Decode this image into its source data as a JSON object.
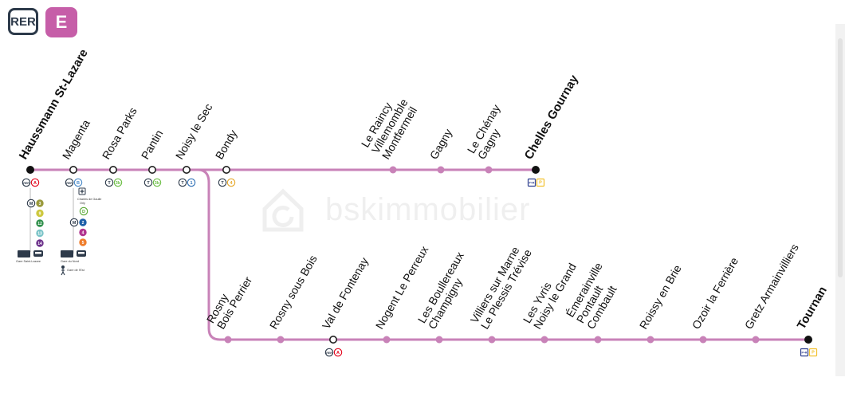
{
  "header": {
    "network": "RER",
    "line": "E"
  },
  "colors": {
    "line": "#c882b8",
    "bullet": "#c882b8",
    "terminus": "#111111",
    "rer_badge": "#2d3a4a",
    "line_badge": "#c65ea8"
  },
  "watermark": {
    "text": "bskimmobilier"
  },
  "branch_main": [
    {
      "id": "haussmann",
      "label": [
        "Haussmann St-Lazare"
      ],
      "type": "terminus",
      "bold": true,
      "connections": [
        {
          "kind": "mode",
          "text": "RER"
        },
        {
          "kind": "line",
          "text": "A",
          "color": "#e3051c",
          "style": "outline"
        }
      ]
    },
    {
      "id": "magenta",
      "label": [
        "Magenta"
      ],
      "type": "interchange",
      "connections": [
        {
          "kind": "mode",
          "text": "RER"
        },
        {
          "kind": "line",
          "text": "B",
          "color": "#4b8bc9",
          "style": "outline"
        }
      ]
    },
    {
      "id": "rosa-parks",
      "label": [
        "Rosa Parks"
      ],
      "type": "interchange",
      "connections": [
        {
          "kind": "mode",
          "text": "T"
        },
        {
          "kind": "line",
          "text": "3b",
          "color": "#6cbe45",
          "style": "outline"
        }
      ]
    },
    {
      "id": "pantin",
      "label": [
        "Pantin"
      ],
      "type": "interchange",
      "connections": [
        {
          "kind": "mode",
          "text": "T"
        },
        {
          "kind": "line",
          "text": "3b",
          "color": "#6cbe45",
          "style": "outline"
        }
      ]
    },
    {
      "id": "noisy-le-sec",
      "label": [
        "Noisy le Sec"
      ],
      "type": "interchange",
      "connections": [
        {
          "kind": "mode",
          "text": "T"
        },
        {
          "kind": "line",
          "text": "1",
          "color": "#2e6fb6",
          "style": "outline"
        }
      ]
    },
    {
      "id": "bondy",
      "label": [
        "Bondy"
      ],
      "type": "interchange",
      "connections": [
        {
          "kind": "mode",
          "text": "T"
        },
        {
          "kind": "line",
          "text": "4",
          "color": "#e6a82b",
          "style": "outline"
        }
      ]
    },
    {
      "id": "le-raincy",
      "label": [
        "Le Raincy",
        "Villemomble",
        "Montfermeil"
      ],
      "type": "stop"
    },
    {
      "id": "gagny",
      "label": [
        "Gagny"
      ],
      "type": "stop"
    },
    {
      "id": "le-chenay-gagny",
      "label": [
        "Le Chénay",
        "Gagny"
      ],
      "type": "stop"
    },
    {
      "id": "chelles",
      "label": [
        "Chelles Gournay"
      ],
      "type": "terminus",
      "bold": true,
      "connections": [
        {
          "kind": "square",
          "text": "P+R",
          "color": "#2e3f8f"
        },
        {
          "kind": "square",
          "text": "P",
          "color": "#f2c12e"
        }
      ]
    }
  ],
  "haussmann_extra": {
    "metro_lines": [
      {
        "text": "3",
        "color": "#9a9a3c"
      },
      {
        "text": "9",
        "color": "#cdc83f"
      },
      {
        "text": "12",
        "color": "#2e8f4a"
      },
      {
        "text": "13",
        "color": "#79c3c7"
      },
      {
        "text": "14",
        "color": "#6b2f8a"
      }
    ],
    "caption": "Gare Saint-Lazare"
  },
  "magenta_extra": {
    "airport_caption": [
      "Charles de Gaulle",
      "Orly"
    ],
    "rer_d": {
      "text": "D",
      "color": "#58a833"
    },
    "metro_lines": [
      {
        "text": "2",
        "color": "#1d5fa8"
      },
      {
        "text": "4",
        "color": "#b1348f"
      },
      {
        "text": "5",
        "color": "#ef7d2b"
      }
    ],
    "caption_train": "Gare du Nord",
    "caption_walk": "Gare de l'Est"
  },
  "branch_tournan": [
    {
      "id": "rosny-bois-perrier",
      "label": [
        "Rosny",
        "Bois Perrier"
      ],
      "type": "stop"
    },
    {
      "id": "rosny-sous-bois",
      "label": [
        "Rosny sous Bois"
      ],
      "type": "stop"
    },
    {
      "id": "val-de-fontenay",
      "label": [
        "Val de Fontenay"
      ],
      "type": "interchange",
      "connections": [
        {
          "kind": "mode",
          "text": "RER"
        },
        {
          "kind": "line",
          "text": "A",
          "color": "#e3051c",
          "style": "outline"
        }
      ]
    },
    {
      "id": "nogent",
      "label": [
        "Nogent Le Perreux"
      ],
      "type": "stop"
    },
    {
      "id": "boullereaux",
      "label": [
        "Les Boullereaux",
        "Champigny"
      ],
      "type": "stop"
    },
    {
      "id": "villiers",
      "label": [
        "Villiers sur Marne",
        "Le Plessis Trévise"
      ],
      "type": "stop"
    },
    {
      "id": "yvris",
      "label": [
        "Les Yvris",
        "Noisy le Grand"
      ],
      "type": "stop"
    },
    {
      "id": "emerainville",
      "label": [
        "Émerainville",
        "Pontault",
        "Combault"
      ],
      "type": "stop"
    },
    {
      "id": "roissy-en-brie",
      "label": [
        "Roissy en Brie"
      ],
      "type": "stop"
    },
    {
      "id": "ozoir",
      "label": [
        "Ozoir la Ferrière"
      ],
      "type": "stop"
    },
    {
      "id": "gretz",
      "label": [
        "Gretz Armainvilliers"
      ],
      "type": "stop"
    },
    {
      "id": "tournan",
      "label": [
        "Tournan"
      ],
      "type": "terminus",
      "bold": true,
      "connections": [
        {
          "kind": "square",
          "text": "P+R",
          "color": "#2e3f8f"
        },
        {
          "kind": "square",
          "text": "P",
          "color": "#f2c12e"
        }
      ]
    }
  ]
}
